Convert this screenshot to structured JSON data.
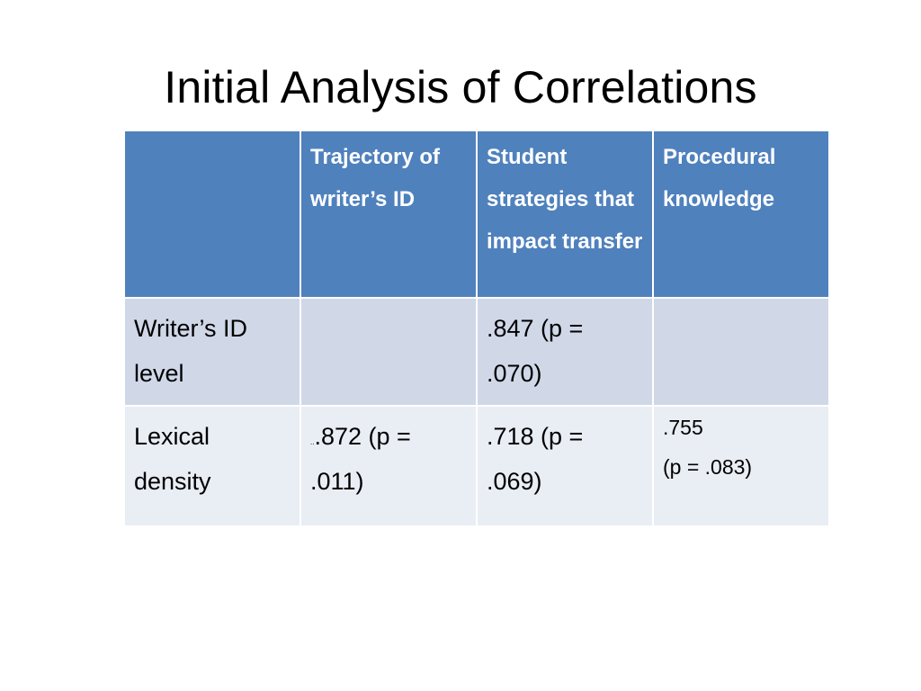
{
  "slide": {
    "title": "Initial Analysis of Correlations"
  },
  "table": {
    "headers": [
      "",
      "Trajectory of writer’s ID",
      "Student strategies that impact transfer",
      "Procedural knowledge"
    ],
    "rows": [
      {
        "label": "Writer’s ID level",
        "cells": [
          "",
          ".847 (p = .070)",
          ""
        ]
      },
      {
        "label": "Lexical density",
        "cell0_mark": "..",
        "cell0_value": ".872 (p = .011)",
        "cell1": ".718 (p = .069)",
        "cell2_line1": ".755",
        "cell2_line2": "(p = .083)"
      }
    ]
  },
  "colors": {
    "header_bg": "#4f81bd",
    "row_odd_bg": "#d0d8e8",
    "row_even_bg": "#e9edf4",
    "header_text": "#ffffff"
  }
}
